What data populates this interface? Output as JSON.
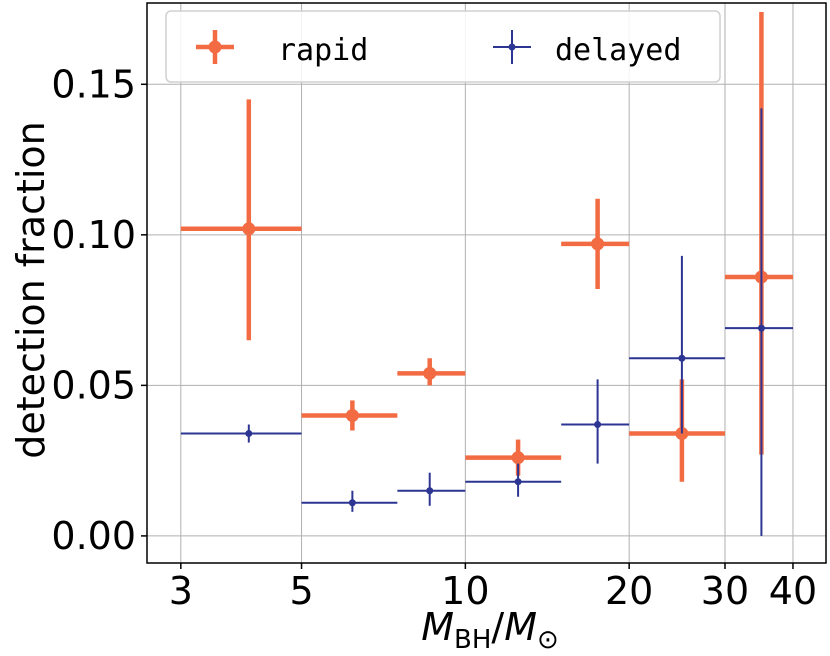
{
  "chart_data": {
    "type": "scatter",
    "xscale": "log",
    "xlim": [
      2.6,
      46
    ],
    "ylim": [
      -0.009,
      0.177
    ],
    "xticks": [
      3,
      5,
      10,
      20,
      30,
      40
    ],
    "xtick_labels": [
      "3",
      "5",
      "10",
      "20",
      "30",
      "40"
    ],
    "yticks": [
      0.0,
      0.05,
      0.1,
      0.15
    ],
    "ytick_labels": [
      "0.00",
      "0.05",
      "0.10",
      "0.15"
    ],
    "xlabel": {
      "main": "M",
      "sub1": "BH",
      "slash": "/",
      "main2": "M",
      "sub2": "⊙"
    },
    "ylabel": "detection fraction",
    "grid": true,
    "legend": {
      "placement": "top-left",
      "entries": [
        "rapid",
        "delayed"
      ]
    },
    "series": [
      {
        "name": "rapid",
        "color": "#f26b43",
        "points": [
          {
            "x": 4.0,
            "y": 0.102,
            "xlo": 3.0,
            "xhi": 5.0,
            "ylo": 0.065,
            "yhi": 0.145
          },
          {
            "x": 6.2,
            "y": 0.04,
            "xlo": 5.0,
            "xhi": 7.5,
            "ylo": 0.035,
            "yhi": 0.045
          },
          {
            "x": 8.6,
            "y": 0.054,
            "xlo": 7.5,
            "xhi": 10.0,
            "ylo": 0.05,
            "yhi": 0.059
          },
          {
            "x": 12.5,
            "y": 0.026,
            "xlo": 10.0,
            "xhi": 15.0,
            "ylo": 0.02,
            "yhi": 0.032
          },
          {
            "x": 17.5,
            "y": 0.097,
            "xlo": 15.0,
            "xhi": 20.0,
            "ylo": 0.082,
            "yhi": 0.112
          },
          {
            "x": 25.0,
            "y": 0.034,
            "xlo": 20.0,
            "xhi": 30.0,
            "ylo": 0.018,
            "yhi": 0.052
          },
          {
            "x": 35.0,
            "y": 0.086,
            "xlo": 30.0,
            "xhi": 40.0,
            "ylo": 0.027,
            "yhi": 0.174
          }
        ]
      },
      {
        "name": "delayed",
        "color": "#2d3593",
        "points": [
          {
            "x": 4.0,
            "y": 0.034,
            "xlo": 3.0,
            "xhi": 5.0,
            "ylo": 0.031,
            "yhi": 0.037
          },
          {
            "x": 6.2,
            "y": 0.011,
            "xlo": 5.0,
            "xhi": 7.5,
            "ylo": 0.008,
            "yhi": 0.015
          },
          {
            "x": 8.6,
            "y": 0.015,
            "xlo": 7.5,
            "xhi": 10.0,
            "ylo": 0.01,
            "yhi": 0.021
          },
          {
            "x": 12.5,
            "y": 0.018,
            "xlo": 10.0,
            "xhi": 15.0,
            "ylo": 0.013,
            "yhi": 0.024
          },
          {
            "x": 17.5,
            "y": 0.037,
            "xlo": 15.0,
            "xhi": 20.0,
            "ylo": 0.024,
            "yhi": 0.052
          },
          {
            "x": 25.0,
            "y": 0.059,
            "xlo": 20.0,
            "xhi": 30.0,
            "ylo": 0.034,
            "yhi": 0.093
          },
          {
            "x": 35.0,
            "y": 0.069,
            "xlo": 30.0,
            "xhi": 40.0,
            "ylo": 0.0,
            "yhi": 0.142
          }
        ]
      }
    ]
  }
}
